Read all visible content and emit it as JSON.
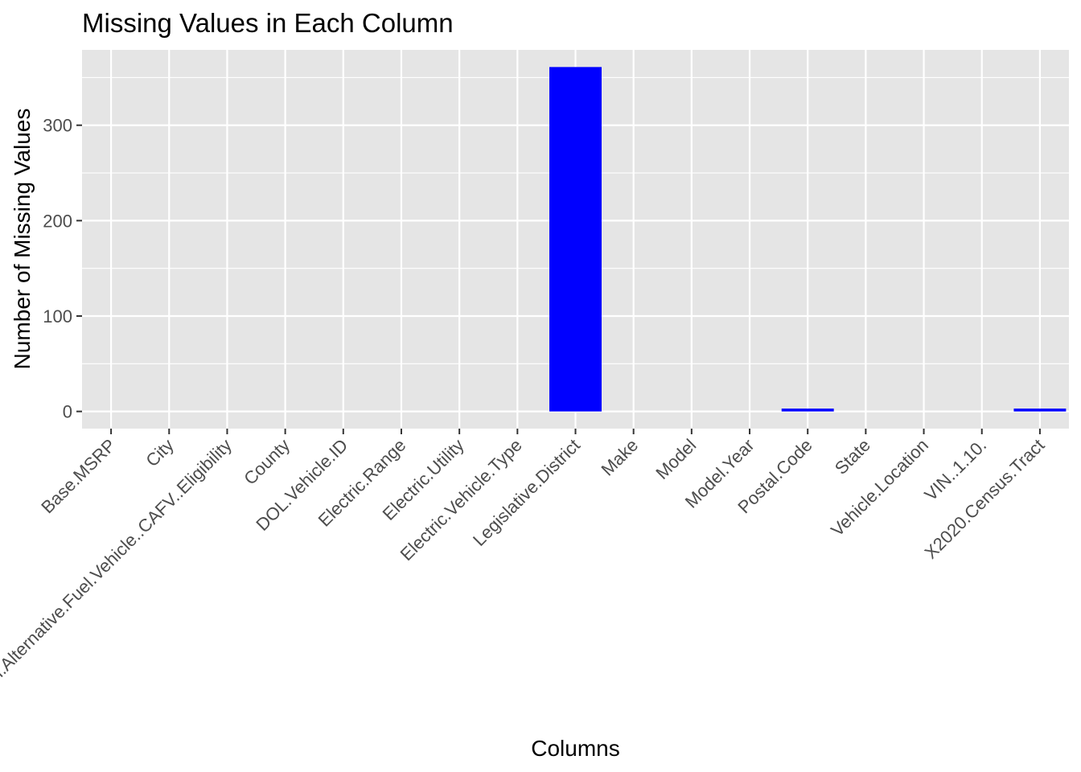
{
  "chart_data": {
    "type": "bar",
    "title": "Missing Values in Each Column",
    "xlabel": "Columns",
    "ylabel": "Number of Missing Values",
    "categories": [
      "Base.MSRP",
      "City",
      "Clean.Alternative.Fuel.Vehicle..CAFV..Eligibility",
      "County",
      "DOL.Vehicle.ID",
      "Electric.Range",
      "Electric.Utility",
      "Electric.Vehicle.Type",
      "Legislative.District",
      "Make",
      "Model",
      "Model.Year",
      "Postal.Code",
      "State",
      "Vehicle.Location",
      "VIN..1.10.",
      "X2020.Census.Tract"
    ],
    "values": [
      0,
      0,
      0,
      0,
      0,
      0,
      0,
      0,
      361,
      0,
      0,
      0,
      3,
      0,
      0,
      0,
      3
    ],
    "y_ticks": [
      0,
      100,
      200,
      300
    ],
    "ylim": [
      -18,
      379
    ],
    "grid": true,
    "legend": "none",
    "bar_color": "#0000FF",
    "panel_background": "#E5E5E5",
    "grid_color": "#FFFFFF"
  }
}
